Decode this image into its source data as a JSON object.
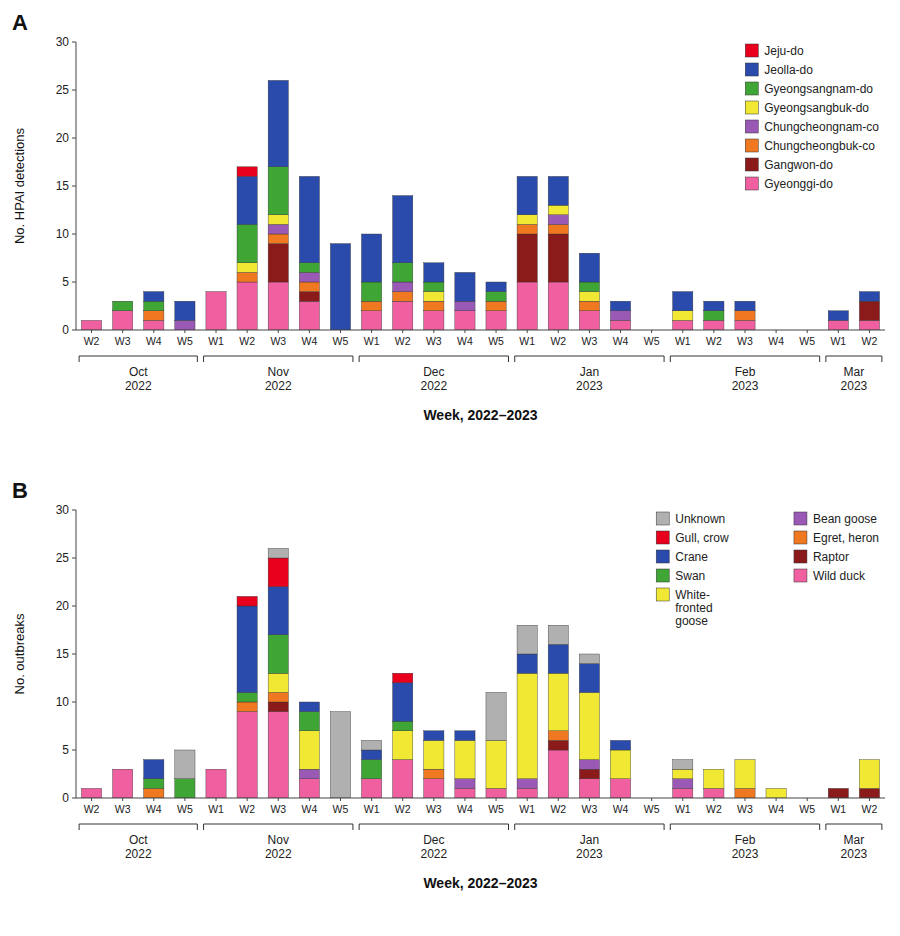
{
  "chart_data": [
    {
      "type": "bar",
      "stacked": true,
      "title": "A",
      "x_label": "Week, 2022–2023",
      "y_label": "No. HPAI detections",
      "categories": [
        "W2",
        "W3",
        "W4",
        "W5",
        "W1",
        "W2",
        "W3",
        "W4",
        "W5",
        "W1",
        "W2",
        "W3",
        "W4",
        "W5",
        "W1",
        "W2",
        "W3",
        "W4",
        "W5",
        "W1",
        "W2",
        "W3",
        "W4",
        "W5",
        "W1",
        "W2"
      ],
      "category_groups": [
        {
          "label": "Oct\n2022",
          "start": 0,
          "end": 3
        },
        {
          "label": "Nov\n2022",
          "start": 4,
          "end": 8
        },
        {
          "label": "Dec\n2022",
          "start": 9,
          "end": 13
        },
        {
          "label": "Jan\n2023",
          "start": 14,
          "end": 18
        },
        {
          "label": "Feb\n2023",
          "start": 19,
          "end": 23
        },
        {
          "label": "Mar\n2023",
          "start": 24,
          "end": 25
        }
      ],
      "series": [
        {
          "name": "Gyeonggi-do",
          "color": "#f060a0",
          "values": [
            1,
            2,
            1,
            0,
            4,
            5,
            5,
            3,
            0,
            2,
            3,
            2,
            2,
            2,
            5,
            5,
            2,
            1,
            0,
            1,
            1,
            1,
            0,
            0,
            1,
            1
          ]
        },
        {
          "name": "Gangwon-do",
          "color": "#8b1a1a",
          "values": [
            0,
            0,
            0,
            0,
            0,
            0,
            4,
            1,
            0,
            0,
            0,
            0,
            0,
            0,
            5,
            5,
            0,
            0,
            0,
            0,
            0,
            0,
            0,
            0,
            0,
            2
          ]
        },
        {
          "name": "Chungcheongbuk-co",
          "color": "#f07820",
          "values": [
            0,
            0,
            1,
            0,
            0,
            1,
            1,
            1,
            0,
            1,
            1,
            1,
            0,
            1,
            1,
            1,
            1,
            0,
            0,
            0,
            0,
            1,
            0,
            0,
            0,
            0
          ]
        },
        {
          "name": "Chungcheongnam-co",
          "color": "#9b59b6",
          "values": [
            0,
            0,
            0,
            1,
            0,
            0,
            1,
            1,
            0,
            0,
            1,
            0,
            1,
            0,
            0,
            1,
            0,
            1,
            0,
            0,
            0,
            0,
            0,
            0,
            0,
            0
          ]
        },
        {
          "name": "Gyeongsangbuk-do",
          "color": "#f0e832",
          "values": [
            0,
            0,
            0,
            0,
            0,
            1,
            1,
            0,
            0,
            0,
            0,
            1,
            0,
            0,
            1,
            1,
            1,
            0,
            0,
            1,
            0,
            0,
            0,
            0,
            0,
            0
          ]
        },
        {
          "name": "Gyeongsangnam-do",
          "color": "#3fa535",
          "values": [
            0,
            1,
            1,
            0,
            0,
            4,
            5,
            1,
            0,
            2,
            2,
            1,
            0,
            1,
            0,
            0,
            1,
            0,
            0,
            0,
            1,
            0,
            0,
            0,
            0,
            0
          ]
        },
        {
          "name": "Jeolla-do",
          "color": "#2b4bac",
          "values": [
            0,
            0,
            1,
            2,
            0,
            5,
            9,
            9,
            9,
            5,
            7,
            2,
            3,
            1,
            4,
            3,
            3,
            1,
            0,
            2,
            1,
            1,
            0,
            0,
            1,
            1
          ]
        },
        {
          "name": "Jeju-do",
          "color": "#e8001c",
          "values": [
            0,
            0,
            0,
            0,
            0,
            1,
            0,
            0,
            0,
            0,
            0,
            0,
            0,
            0,
            0,
            0,
            0,
            0,
            0,
            0,
            0,
            0,
            0,
            0,
            0,
            0
          ]
        }
      ],
      "ylim": [
        0,
        30
      ],
      "yticks": [
        0,
        5,
        10,
        15,
        20,
        25,
        30
      ],
      "grid": false,
      "legend": "upper right"
    },
    {
      "type": "bar",
      "stacked": true,
      "title": "B",
      "x_label": "Week, 2022–2023",
      "y_label": "No. outbreaks",
      "categories": [
        "W2",
        "W3",
        "W4",
        "W5",
        "W1",
        "W2",
        "W3",
        "W4",
        "W5",
        "W1",
        "W2",
        "W3",
        "W4",
        "W5",
        "W1",
        "W2",
        "W3",
        "W4",
        "W5",
        "W1",
        "W2",
        "W3",
        "W4",
        "W5",
        "W1",
        "W2"
      ],
      "category_groups": [
        {
          "label": "Oct\n2022",
          "start": 0,
          "end": 3
        },
        {
          "label": "Nov\n2022",
          "start": 4,
          "end": 8
        },
        {
          "label": "Dec\n2022",
          "start": 9,
          "end": 13
        },
        {
          "label": "Jan\n2023",
          "start": 14,
          "end": 18
        },
        {
          "label": "Feb\n2023",
          "start": 19,
          "end": 23
        },
        {
          "label": "Mar\n2023",
          "start": 24,
          "end": 25
        }
      ],
      "series": [
        {
          "name": "Wild duck",
          "color": "#f060a0",
          "values": [
            1,
            3,
            0,
            0,
            3,
            9,
            9,
            2,
            0,
            2,
            4,
            2,
            1,
            1,
            1,
            5,
            2,
            2,
            0,
            1,
            1,
            0,
            0,
            0,
            0,
            0
          ]
        },
        {
          "name": "Raptor",
          "color": "#8b1a1a",
          "values": [
            0,
            0,
            0,
            0,
            0,
            0,
            1,
            0,
            0,
            0,
            0,
            0,
            0,
            0,
            0,
            1,
            1,
            0,
            0,
            0,
            0,
            0,
            0,
            0,
            1,
            1
          ]
        },
        {
          "name": "Egret, heron",
          "color": "#f07820",
          "values": [
            0,
            0,
            1,
            0,
            0,
            1,
            1,
            0,
            0,
            0,
            0,
            1,
            0,
            0,
            0,
            1,
            0,
            0,
            0,
            0,
            0,
            1,
            0,
            0,
            0,
            0
          ]
        },
        {
          "name": "Bean goose",
          "color": "#9b59b6",
          "values": [
            0,
            0,
            0,
            0,
            0,
            0,
            0,
            1,
            0,
            0,
            0,
            0,
            1,
            0,
            1,
            0,
            1,
            0,
            0,
            1,
            0,
            0,
            0,
            0,
            0,
            0
          ]
        },
        {
          "name": "White-\nfronted\ngoose",
          "color": "#f0e832",
          "values": [
            0,
            0,
            0,
            0,
            0,
            0,
            2,
            4,
            0,
            0,
            3,
            3,
            4,
            5,
            11,
            6,
            7,
            3,
            0,
            1,
            2,
            3,
            1,
            0,
            0,
            3
          ]
        },
        {
          "name": "Swan",
          "color": "#3fa535",
          "values": [
            0,
            0,
            1,
            2,
            0,
            1,
            4,
            2,
            0,
            2,
            1,
            0,
            0,
            0,
            0,
            0,
            0,
            0,
            0,
            0,
            0,
            0,
            0,
            0,
            0,
            0
          ]
        },
        {
          "name": "Crane",
          "color": "#2b4bac",
          "values": [
            0,
            0,
            2,
            0,
            0,
            9,
            5,
            1,
            0,
            1,
            4,
            1,
            1,
            0,
            2,
            3,
            3,
            1,
            0,
            0,
            0,
            0,
            0,
            0,
            0,
            0
          ]
        },
        {
          "name": "Gull, crow",
          "color": "#e8001c",
          "values": [
            0,
            0,
            0,
            0,
            0,
            1,
            3,
            0,
            0,
            0,
            1,
            0,
            0,
            0,
            0,
            0,
            0,
            0,
            0,
            0,
            0,
            0,
            0,
            0,
            0,
            0
          ]
        },
        {
          "name": "Unknown",
          "color": "#b0b0b0",
          "values": [
            0,
            0,
            0,
            3,
            0,
            0,
            1,
            0,
            9,
            1,
            0,
            0,
            0,
            5,
            3,
            2,
            1,
            0,
            0,
            1,
            0,
            0,
            0,
            0,
            0,
            0
          ]
        }
      ],
      "ylim": [
        0,
        30
      ],
      "yticks": [
        0,
        5,
        10,
        15,
        20,
        25,
        30
      ],
      "grid": false,
      "legend": "upper right"
    }
  ]
}
